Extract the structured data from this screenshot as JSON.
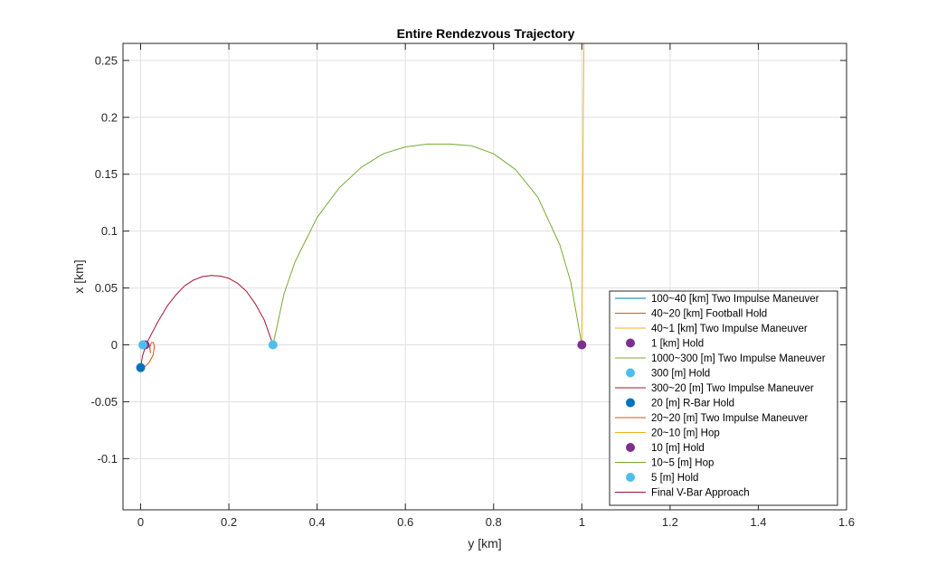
{
  "chart_data": {
    "type": "line",
    "title": "Entire Rendezvous Trajectory",
    "xlabel": "y [km]",
    "ylabel": "x [km]",
    "xlim": [
      -0.04,
      1.6
    ],
    "ylim": [
      -0.145,
      0.265
    ],
    "xticks": [
      0,
      0.2,
      0.4,
      0.6,
      0.8,
      1,
      1.2,
      1.4,
      1.6
    ],
    "xtick_labels": [
      "0",
      "0.2",
      "0.4",
      "0.6",
      "0.8",
      "1",
      "1.2",
      "1.4",
      "1.6"
    ],
    "yticks": [
      -0.1,
      -0.05,
      0,
      0.05,
      0.1,
      0.15,
      0.2,
      0.25
    ],
    "ytick_labels": [
      "-0.1",
      "-0.05",
      "0",
      "0.05",
      "0.1",
      "0.15",
      "0.2",
      "0.25"
    ],
    "grid": true,
    "legend_position": "bottom-right",
    "colors": {
      "blue": "#0072BD",
      "orange": "#D95319",
      "yellow": "#EDB120",
      "purple": "#7E2F8E",
      "green": "#77AC30",
      "cyan": "#4DBEEE",
      "darkred": "#A2142F"
    },
    "series": [
      {
        "name": "100~40 [km] Two Impulse Maneuver",
        "kind": "line",
        "color": "#0072BD",
        "points": []
      },
      {
        "name": "40~20 [km] Football Hold",
        "kind": "line",
        "color": "#D95319",
        "points": []
      },
      {
        "name": "40~1 [km] Two Impulse Maneuver",
        "kind": "line",
        "color": "#EDB120",
        "points": [
          [
            1.0,
            0.0
          ],
          [
            1.0008,
            0.05
          ],
          [
            1.0016,
            0.1
          ],
          [
            1.0025,
            0.15
          ],
          [
            1.0033,
            0.2
          ],
          [
            1.0042,
            0.25
          ],
          [
            1.0045,
            0.27
          ]
        ]
      },
      {
        "name": "1 [km] Hold",
        "kind": "marker",
        "color": "#7E2F8E",
        "points": [
          [
            1.0,
            0.0
          ]
        ]
      },
      {
        "name": "1000~300 [m] Two Impulse Maneuver",
        "kind": "line",
        "color": "#77AC30",
        "points": [
          [
            1.0,
            0.0
          ],
          [
            0.975,
            0.055
          ],
          [
            0.95,
            0.088
          ],
          [
            0.9,
            0.13
          ],
          [
            0.85,
            0.154
          ],
          [
            0.8,
            0.168
          ],
          [
            0.75,
            0.175
          ],
          [
            0.7,
            0.1765
          ],
          [
            0.65,
            0.1765
          ],
          [
            0.6,
            0.174
          ],
          [
            0.55,
            0.168
          ],
          [
            0.5,
            0.156
          ],
          [
            0.45,
            0.138
          ],
          [
            0.4,
            0.112
          ],
          [
            0.35,
            0.073
          ],
          [
            0.325,
            0.045
          ],
          [
            0.3,
            0.0
          ]
        ]
      },
      {
        "name": "300 [m] Hold",
        "kind": "marker",
        "color": "#4DBEEE",
        "points": [
          [
            0.3,
            0.0
          ]
        ]
      },
      {
        "name": "300~20 [m] Two Impulse Maneuver",
        "kind": "line",
        "color": "#A2142F",
        "points": [
          [
            0.3,
            0.0
          ],
          [
            0.28,
            0.022
          ],
          [
            0.26,
            0.036
          ],
          [
            0.24,
            0.047
          ],
          [
            0.22,
            0.054
          ],
          [
            0.2,
            0.0585
          ],
          [
            0.18,
            0.0605
          ],
          [
            0.16,
            0.061
          ],
          [
            0.14,
            0.06
          ],
          [
            0.12,
            0.057
          ],
          [
            0.1,
            0.052
          ],
          [
            0.08,
            0.044
          ],
          [
            0.06,
            0.034
          ],
          [
            0.04,
            0.021
          ],
          [
            0.025,
            0.01
          ],
          [
            0.012,
            0.0
          ],
          [
            0.004,
            -0.01
          ],
          [
            0.0,
            -0.02
          ]
        ]
      },
      {
        "name": "20 [m] R-Bar Hold",
        "kind": "marker",
        "color": "#0072BD",
        "points": [
          [
            0.0,
            -0.02
          ]
        ]
      },
      {
        "name": "20~20 [m] Two Impulse Maneuver",
        "kind": "line",
        "color": "#D95319",
        "points": [
          [
            0.0,
            -0.02
          ],
          [
            0.01,
            -0.019
          ],
          [
            0.02,
            -0.015
          ],
          [
            0.028,
            -0.009
          ],
          [
            0.031,
            -0.002
          ],
          [
            0.029,
            0.002
          ],
          [
            0.024,
            0.002
          ],
          [
            0.021,
            -0.002
          ],
          [
            0.022,
            -0.007
          ],
          [
            0.02,
            -0.0005
          ],
          [
            0.015,
            0.0
          ]
        ]
      },
      {
        "name": "20~10 [m] Hop",
        "kind": "line",
        "color": "#EDB120",
        "points": [
          [
            0.02,
            0.0
          ],
          [
            0.015,
            0.0007
          ],
          [
            0.01,
            0.0
          ]
        ]
      },
      {
        "name": "10 [m] Hold",
        "kind": "marker",
        "color": "#7E2F8E",
        "points": [
          [
            0.01,
            0.0
          ]
        ]
      },
      {
        "name": "10~5 [m] Hop",
        "kind": "line",
        "color": "#77AC30",
        "points": [
          [
            0.01,
            0.0
          ],
          [
            0.0075,
            0.0004
          ],
          [
            0.005,
            0.0
          ]
        ]
      },
      {
        "name": "5 [m] Hold",
        "kind": "marker",
        "color": "#4DBEEE",
        "points": [
          [
            0.005,
            0.0
          ]
        ]
      },
      {
        "name": "Final V-Bar Approach",
        "kind": "line",
        "color": "#A2142F",
        "points": [
          [
            0.005,
            0.0
          ],
          [
            0.0,
            0.0
          ]
        ]
      }
    ]
  }
}
